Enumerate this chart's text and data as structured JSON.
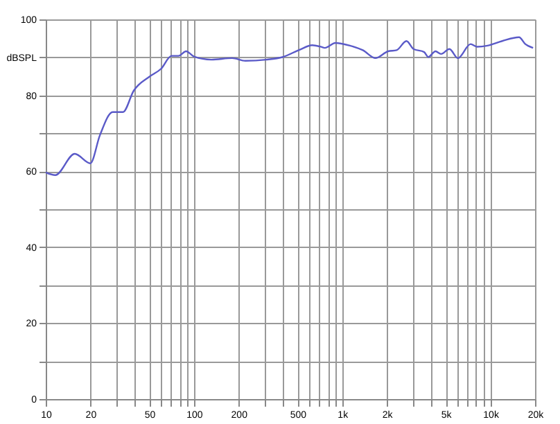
{
  "chart_data": {
    "type": "line",
    "log": "x",
    "grid": true,
    "marker": "none",
    "line_style": "solid",
    "xlim": [
      10,
      20000
    ],
    "ylim": [
      0,
      100
    ],
    "xticks": [
      10,
      20,
      {
        "value": 30,
        "label": null
      },
      {
        "value": 40,
        "label": null
      },
      50,
      {
        "value": 60,
        "label": null
      },
      {
        "value": 70,
        "label": null
      },
      {
        "value": 80,
        "label": null
      },
      {
        "value": 90,
        "label": null
      },
      100,
      200,
      {
        "value": 300,
        "label": null
      },
      {
        "value": 400,
        "label": null
      },
      500,
      {
        "value": 600,
        "label": null
      },
      {
        "value": 700,
        "label": null
      },
      {
        "value": 800,
        "label": null
      },
      {
        "value": 900,
        "label": null
      },
      {
        "value": 1000,
        "label": "1k"
      },
      {
        "value": 2000,
        "label": "2k"
      },
      {
        "value": 3000,
        "label": null
      },
      {
        "value": 4000,
        "label": null
      },
      {
        "value": 5000,
        "label": "5k"
      },
      {
        "value": 6000,
        "label": null
      },
      {
        "value": 7000,
        "label": null
      },
      {
        "value": 8000,
        "label": null
      },
      {
        "value": 9000,
        "label": null
      },
      {
        "value": 10000,
        "label": "10k"
      },
      {
        "value": 20000,
        "label": "20k"
      }
    ],
    "yticks": [
      0,
      {
        "value": 10,
        "label": null
      },
      20,
      {
        "value": 30,
        "label": null
      },
      40,
      {
        "value": 50,
        "label": null
      },
      60,
      {
        "value": 70,
        "label": null
      },
      80,
      {
        "value": 90,
        "label": "dBSPL"
      },
      100
    ],
    "series": [
      {
        "color": "#5a5ac8",
        "x": [
          10,
          11.6,
          15.7,
          20,
          23.2,
          28.3,
          33.2,
          39.2,
          50,
          60,
          70.6,
          78.6,
          88.5,
          100,
          131,
          181,
          222,
          307,
          398,
          516,
          628,
          716,
          764,
          899,
          1128,
          1377,
          1677,
          2043,
          2330,
          2713,
          3027,
          3570,
          3810,
          4260,
          4640,
          5290,
          6030,
          7350,
          8110,
          9560,
          12000,
          15600,
          17200,
          19400
        ],
        "values": [
          59.7,
          59.0,
          64.6,
          62.1,
          69.5,
          75.6,
          75.6,
          81.2,
          84.9,
          87.0,
          90.4,
          90.4,
          91.6,
          90.2,
          89.4,
          89.8,
          89.1,
          89.4,
          90.1,
          92.0,
          93.2,
          92.8,
          92.5,
          93.8,
          93.1,
          91.9,
          89.8,
          91.6,
          91.9,
          94.3,
          92.2,
          91.4,
          90.1,
          91.6,
          90.9,
          92.2,
          89.8,
          93.5,
          92.8,
          93.1,
          94.3,
          95.3,
          93.5,
          92.5
        ]
      }
    ]
  }
}
